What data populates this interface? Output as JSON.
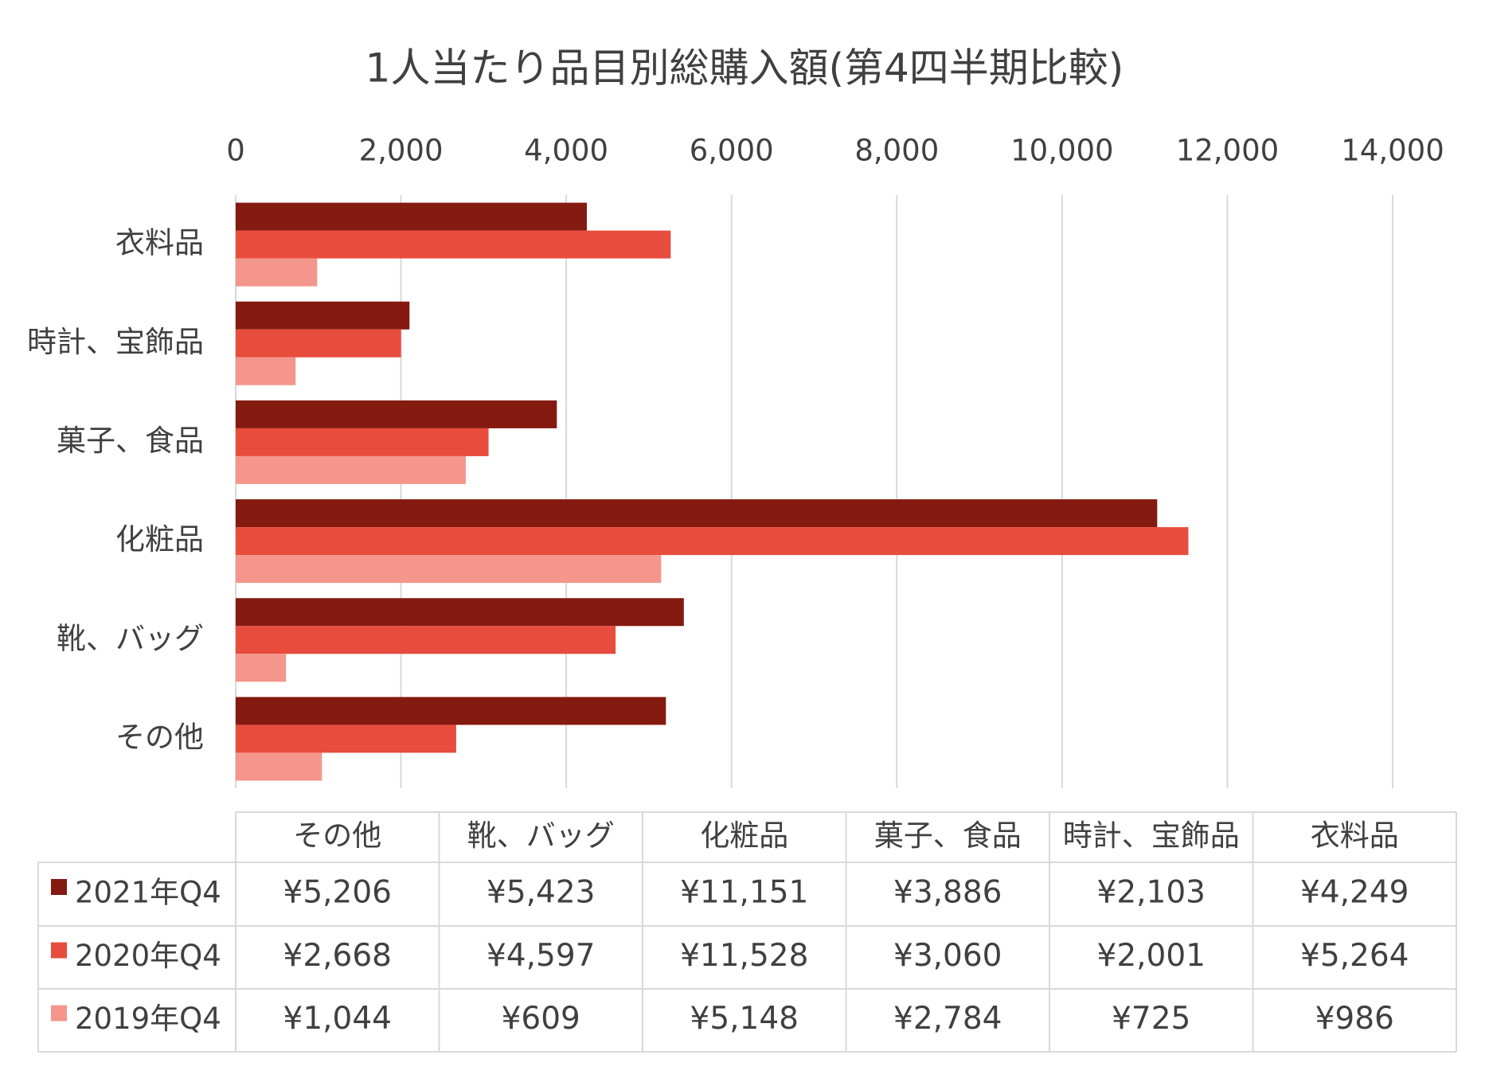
{
  "chart_data": {
    "type": "bar",
    "orientation": "horizontal",
    "title": "1人当たり品目別総購入額(第4四半期比較)",
    "categories": [
      "その他",
      "靴、バッグ",
      "化粧品",
      "菓子、食品",
      "時計、宝飾品",
      "衣料品"
    ],
    "series": [
      {
        "name": "2021年Q4",
        "color": "#841a10",
        "values": [
          5206,
          5423,
          11151,
          3886,
          2103,
          4249
        ],
        "value_labels": [
          "¥5,206",
          "¥5,423",
          "¥11,151",
          "¥3,886",
          "¥2,103",
          "¥4,249"
        ]
      },
      {
        "name": "2020年Q4",
        "color": "#e84c3d",
        "values": [
          2668,
          4597,
          11528,
          3060,
          2001,
          5264
        ],
        "value_labels": [
          "¥2,668",
          "¥4,597",
          "¥11,528",
          "¥3,060",
          "¥2,001",
          "¥5,264"
        ]
      },
      {
        "name": "2019年Q4",
        "color": "#f4968b",
        "values": [
          1044,
          609,
          5148,
          2784,
          725,
          986
        ],
        "value_labels": [
          "¥1,044",
          "¥609",
          "¥5,148",
          "¥2,784",
          "¥725",
          "¥986"
        ]
      }
    ],
    "xlim": [
      0,
      14000
    ],
    "xticks": [
      0,
      {
        "value": 2000,
        "label": "2,000"
      },
      {
        "value": 4000,
        "label": "4,000"
      },
      {
        "value": 6000,
        "label": "6,000"
      },
      {
        "value": 8000,
        "label": "8,000"
      },
      {
        "value": 10000,
        "label": "10,000"
      },
      {
        "value": 12000,
        "label": "12,000"
      },
      {
        "value": 14000,
        "label": "14,000"
      }
    ],
    "grid": true,
    "data_table": true
  }
}
